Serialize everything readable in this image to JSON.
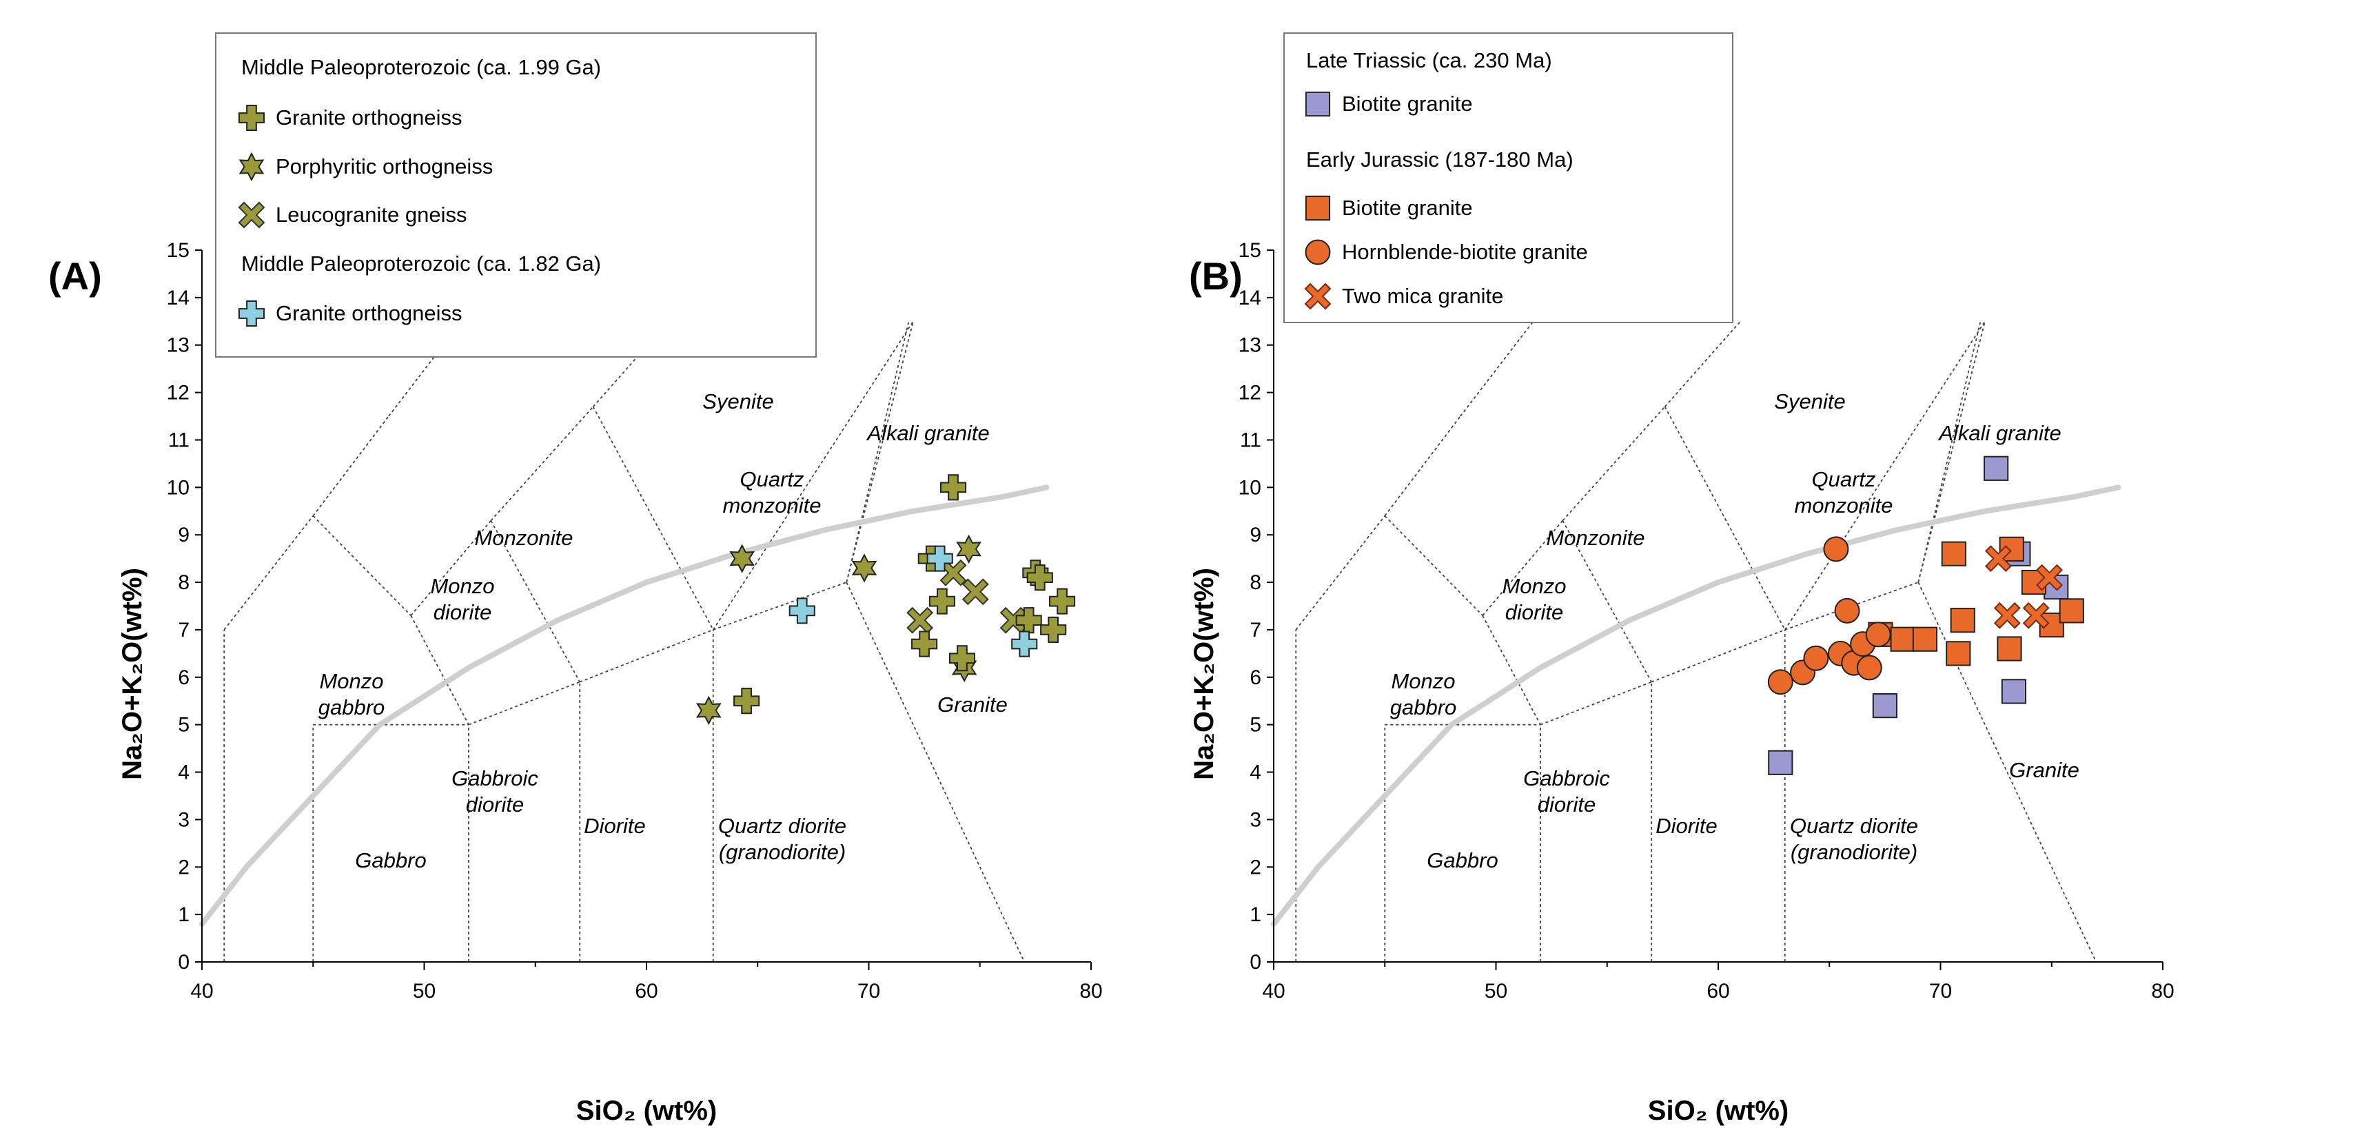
{
  "chart_data": [
    {
      "type": "scatter",
      "panel_label": "(A)",
      "xlabel": "SiO₂ (wt%)",
      "ylabel": "Na₂O+K₂O(wt%)",
      "xlim": [
        40,
        80
      ],
      "ylim": [
        0,
        15
      ],
      "x_ticks": [
        "40",
        "50",
        "60",
        "70",
        "80"
      ],
      "y_ticks": [
        "0",
        "1",
        "2",
        "3",
        "4",
        "5",
        "6",
        "7",
        "8",
        "9",
        "10",
        "11",
        "12",
        "13",
        "14",
        "15"
      ],
      "legend": {
        "position": "top-left",
        "groups": [
          {
            "title": "Middle Paleoproterozoic (ca. 1.99 Ga)",
            "entries": [
              {
                "label": "Granite orthogneiss",
                "marker": "plus",
                "color": "#9a9a3a"
              },
              {
                "label": "Porphyritic orthogneiss",
                "marker": "star",
                "color": "#9a9a3a"
              },
              {
                "label": "Leucogranite gneiss",
                "marker": "x",
                "color": "#9a9a3a"
              }
            ]
          },
          {
            "title": "Middle Paleoproterozoic (ca. 1.82 Ga)",
            "entries": [
              {
                "label": "Granite orthogneiss",
                "marker": "plus",
                "color": "#8fd0e0"
              }
            ]
          }
        ]
      },
      "series": [
        {
          "name": "Granite orthogneiss (ca. 1.99 Ga)",
          "marker": "plus",
          "color": "#9a9a3a",
          "points": [
            [
              73.8,
              10.0
            ],
            [
              72.8,
              8.5
            ],
            [
              72.5,
              6.7
            ],
            [
              73.3,
              7.6
            ],
            [
              74.2,
              6.4
            ],
            [
              77.5,
              8.2
            ],
            [
              77.7,
              8.1
            ],
            [
              77.2,
              7.2
            ],
            [
              78.3,
              7.0
            ],
            [
              78.7,
              7.6
            ],
            [
              64.5,
              5.5
            ]
          ]
        },
        {
          "name": "Porphyritic orthogneiss",
          "marker": "star",
          "color": "#9a9a3a",
          "points": [
            [
              64.3,
              8.5
            ],
            [
              69.8,
              8.3
            ],
            [
              74.5,
              8.7
            ],
            [
              74.3,
              6.2
            ],
            [
              62.8,
              5.3
            ]
          ]
        },
        {
          "name": "Leucogranite gneiss",
          "marker": "x",
          "color": "#9a9a3a",
          "points": [
            [
              72.3,
              7.2
            ],
            [
              73.8,
              8.2
            ],
            [
              74.8,
              7.8
            ],
            [
              76.5,
              7.2
            ]
          ]
        },
        {
          "name": "Granite orthogneiss (ca. 1.82 Ga)",
          "marker": "plus",
          "color": "#8fd0e0",
          "points": [
            [
              67.0,
              7.4
            ],
            [
              73.2,
              8.5
            ],
            [
              77.0,
              6.7
            ]
          ]
        }
      ],
      "regions": [
        "Syenite",
        "Alkali granite",
        "Quartz monzonite",
        "Monzonite",
        "Monzo diorite",
        "Monzo gabbro",
        "Gabbroic diorite",
        "Diorite",
        "Quartz diorite (granodiorite)",
        "Gabbro",
        "Granite"
      ]
    },
    {
      "type": "scatter",
      "panel_label": "(B)",
      "xlabel": "SiO₂ (wt%)",
      "ylabel": "Na₂O+K₂O(wt%)",
      "xlim": [
        40,
        80
      ],
      "ylim": [
        0,
        15
      ],
      "x_ticks": [
        "40",
        "50",
        "60",
        "70",
        "80"
      ],
      "y_ticks": [
        "0",
        "1",
        "2",
        "3",
        "4",
        "5",
        "6",
        "7",
        "8",
        "9",
        "10",
        "11",
        "12",
        "13",
        "14",
        "15"
      ],
      "legend": {
        "position": "top-left",
        "groups": [
          {
            "title": "Late Triassic (ca. 230 Ma)",
            "entries": [
              {
                "label": "Biotite granite",
                "marker": "square",
                "color": "#9a9ad0"
              }
            ]
          },
          {
            "title": "Early Jurassic (187-180 Ma)",
            "entries": [
              {
                "label": "Biotite granite",
                "marker": "square",
                "color": "#e8692a"
              },
              {
                "label": "Hornblende-biotite granite",
                "marker": "circle",
                "color": "#e8692a"
              },
              {
                "label": "Two mica granite",
                "marker": "x",
                "color": "#e8692a"
              }
            ]
          }
        ]
      },
      "series": [
        {
          "name": "Biotite granite (Late Triassic)",
          "marker": "square",
          "color": "#9a9ad0",
          "points": [
            [
              62.8,
              4.2
            ],
            [
              67.5,
              5.4
            ],
            [
              72.5,
              10.4
            ],
            [
              73.5,
              8.6
            ],
            [
              75.2,
              7.9
            ],
            [
              73.3,
              5.7
            ]
          ]
        },
        {
          "name": "Biotite granite (Early Jurassic)",
          "marker": "square",
          "color": "#e8692a",
          "points": [
            [
              67.3,
              6.9
            ],
            [
              68.3,
              6.8
            ],
            [
              69.3,
              6.8
            ],
            [
              70.6,
              8.6
            ],
            [
              70.8,
              6.5
            ],
            [
              71.0,
              7.2
            ],
            [
              73.1,
              6.6
            ],
            [
              74.2,
              8.0
            ],
            [
              75.0,
              7.1
            ],
            [
              75.9,
              7.4
            ],
            [
              73.2,
              8.7
            ]
          ]
        },
        {
          "name": "Hornblende-biotite granite",
          "marker": "circle",
          "color": "#e8692a",
          "points": [
            [
              62.8,
              5.9
            ],
            [
              63.8,
              6.1
            ],
            [
              64.4,
              6.4
            ],
            [
              65.3,
              8.7
            ],
            [
              65.8,
              7.4
            ],
            [
              65.5,
              6.5
            ],
            [
              66.1,
              6.3
            ],
            [
              66.5,
              6.7
            ],
            [
              66.8,
              6.2
            ],
            [
              67.2,
              6.9
            ]
          ]
        },
        {
          "name": "Two mica granite",
          "marker": "x",
          "color": "#e8692a",
          "points": [
            [
              72.6,
              8.5
            ],
            [
              73.0,
              7.3
            ],
            [
              74.3,
              7.3
            ],
            [
              74.9,
              8.1
            ]
          ]
        }
      ],
      "regions": [
        "Syenite",
        "Alkali granite",
        "Quartz monzonite",
        "Monzonite",
        "Monzo diorite",
        "Monzo gabbro",
        "Gabbroic diorite",
        "Diorite",
        "Quartz diorite (granodiorite)",
        "Gabbro",
        "Granite"
      ]
    }
  ]
}
